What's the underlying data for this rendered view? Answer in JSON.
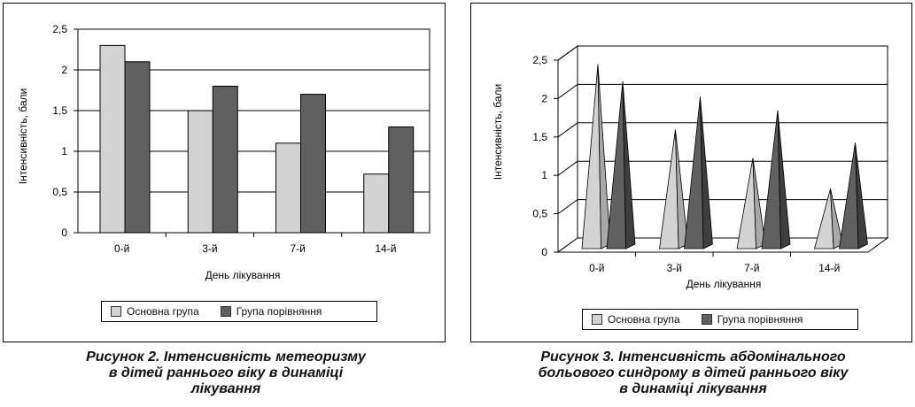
{
  "colors": {
    "main": "#d3d3d3",
    "comparison": "#606060",
    "main_dark": "#a8a8a8",
    "comparison_dark": "#3e3e3e"
  },
  "chart_data": [
    {
      "type": "bar",
      "categories": [
        "0-й",
        "3-й",
        "7-й",
        "14-й"
      ],
      "series": [
        {
          "name": "Основна група",
          "values": [
            2.3,
            1.5,
            1.1,
            0.72
          ]
        },
        {
          "name": "Група порівняння",
          "values": [
            2.1,
            1.8,
            1.7,
            1.3
          ]
        }
      ],
      "xlabel": "День лікування",
      "ylabel": "Інтенсивність, бали",
      "ylim": [
        0,
        2.5
      ],
      "yticks": [
        "0",
        "0,5",
        "1",
        "1,5",
        "2",
        "2,5"
      ],
      "grid": true,
      "legend": "bottom"
    },
    {
      "type": "bar",
      "style": "3d-pyramid",
      "categories": [
        "0-й",
        "3-й",
        "7-й",
        "14-й"
      ],
      "series": [
        {
          "name": "Основна група",
          "values": [
            2.4,
            1.55,
            1.18,
            0.78
          ]
        },
        {
          "name": "Група порівняння",
          "values": [
            2.18,
            1.98,
            1.8,
            1.38
          ]
        }
      ],
      "xlabel": "День лікування",
      "ylabel": "Інтенсивність, бали",
      "ylim": [
        0,
        2.5
      ],
      "yticks": [
        "0",
        "0,5",
        "1",
        "1,5",
        "2",
        "2,5"
      ],
      "grid": true,
      "legend": "bottom"
    }
  ],
  "captions": [
    {
      "lines": [
        "Рисунок 2. Інтенсивність метеоризму",
        "в дітей раннього віку в динаміці",
        "лікування"
      ]
    },
    {
      "lines": [
        "Рисунок 3. Інтенсивність абдомінального",
        "больового синдрому в дітей раннього віку",
        "в динаміці лікування"
      ]
    }
  ]
}
